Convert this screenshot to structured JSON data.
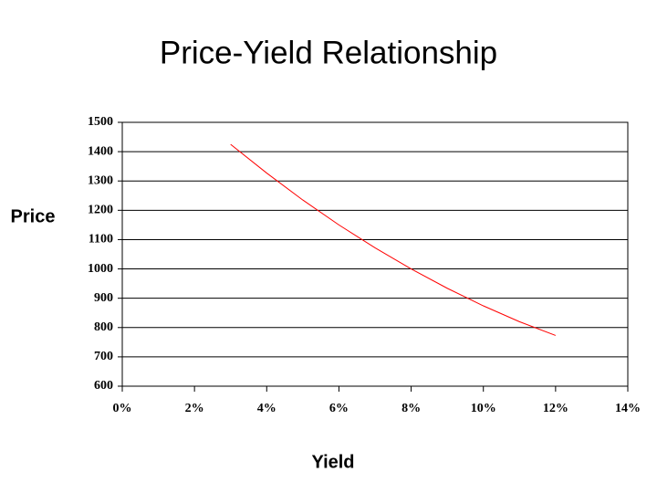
{
  "chart_data": {
    "type": "line",
    "title": "Price-Yield Relationship",
    "x_label": "Yield",
    "y_label": "Price",
    "x": [
      3,
      4,
      5,
      6,
      7,
      8,
      9,
      10,
      11,
      12
    ],
    "series": [
      {
        "name": "Price",
        "color": "#ff0000",
        "values": [
          1425,
          1327,
          1235,
          1150,
          1072,
          1000,
          934,
          874,
          820,
          773
        ]
      }
    ],
    "xlim": [
      0,
      14
    ],
    "xticks": [
      {
        "value": 0,
        "label": "0%"
      },
      {
        "value": 2,
        "label": "2%"
      },
      {
        "value": 4,
        "label": "4%"
      },
      {
        "value": 6,
        "label": "6%"
      },
      {
        "value": 8,
        "label": "8%"
      },
      {
        "value": 10,
        "label": "10%"
      },
      {
        "value": 12,
        "label": "12%"
      },
      {
        "value": 14,
        "label": "14%"
      }
    ],
    "ylim": [
      600,
      1500
    ],
    "yticks": [
      600,
      700,
      800,
      900,
      1000,
      1100,
      1200,
      1300,
      1400,
      1500
    ],
    "grid": true
  }
}
